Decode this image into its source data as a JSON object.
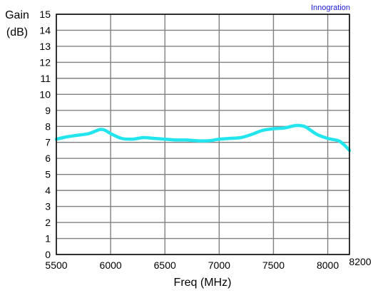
{
  "brand": {
    "text": "Innogration",
    "color": "#1a1adb"
  },
  "chart_data": {
    "type": "line",
    "title": "",
    "ylabel_line1": "Gain",
    "ylabel_line2": "(dB)",
    "xlabel": "Freq (MHz)",
    "xlim": [
      5500,
      8200
    ],
    "ylim": [
      0,
      15
    ],
    "grid": true,
    "x_ticks": [
      5500,
      6000,
      6500,
      7000,
      7500,
      8000,
      8200
    ],
    "y_ticks": [
      0,
      1,
      2,
      3,
      4,
      5,
      6,
      7,
      8,
      9,
      10,
      11,
      12,
      13,
      14,
      15
    ],
    "line_color": "#22e5ee",
    "grid_color": "#808080",
    "series": [
      {
        "x": [
          5500,
          5600,
          5700,
          5800,
          5900,
          5950,
          6000,
          6100,
          6200,
          6300,
          6400,
          6500,
          6600,
          6700,
          6800,
          6900,
          7000,
          7100,
          7200,
          7300,
          7400,
          7500,
          7600,
          7700,
          7750,
          7800,
          7900,
          8000,
          8100,
          8150,
          8200
        ],
        "y": [
          7.2,
          7.35,
          7.45,
          7.55,
          7.8,
          7.75,
          7.55,
          7.25,
          7.2,
          7.3,
          7.25,
          7.2,
          7.15,
          7.15,
          7.1,
          7.1,
          7.2,
          7.25,
          7.3,
          7.5,
          7.75,
          7.85,
          7.9,
          8.05,
          8.05,
          7.95,
          7.5,
          7.25,
          7.1,
          6.85,
          6.5
        ]
      }
    ]
  }
}
